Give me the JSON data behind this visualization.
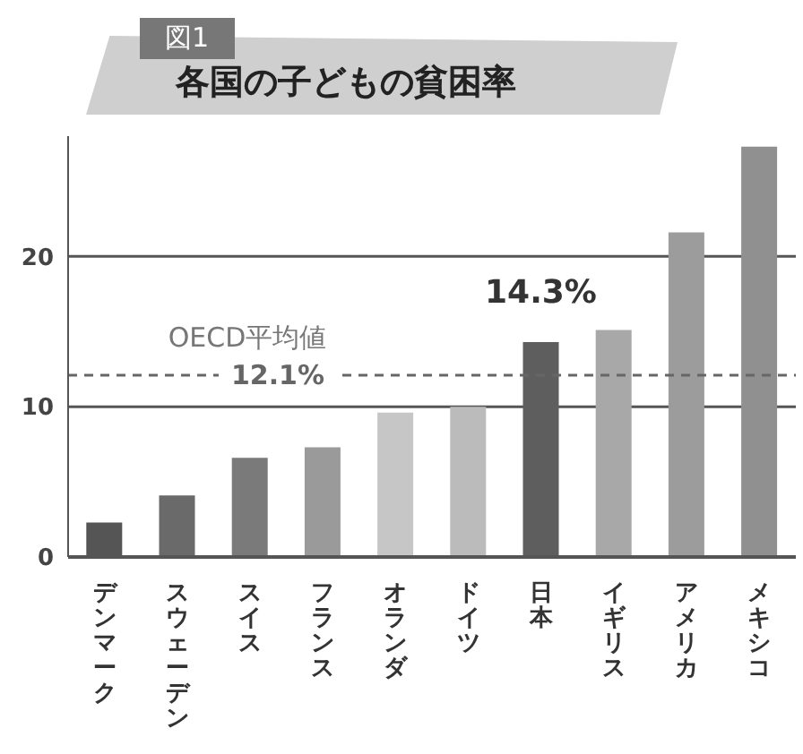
{
  "chart_data": {
    "type": "bar",
    "title": "各国の子どもの貧困率",
    "annotations": [
      "図1",
      "OECD平均値"
    ],
    "categories": [
      "デンマーク",
      "スウェーデン",
      "スイス",
      "フランス",
      "オランダ",
      "ドイツ",
      "日本",
      "イギリス",
      "アメリカ",
      "メキシコ"
    ],
    "values": [
      2.3,
      4.1,
      6.6,
      7.3,
      9.6,
      10.0,
      14.3,
      15.1,
      21.6,
      27.3
    ],
    "colors": [
      "#555555",
      "#6a6a6a",
      "#7a7a7a",
      "#9a9a9a",
      "#c6c6c6",
      "#bbbbbb",
      "#5e5e5e",
      "#a8a8a8",
      "#9c9c9c",
      "#909090"
    ],
    "value_labels": [
      null,
      null,
      null,
      null,
      null,
      null,
      "14.3%",
      null,
      null,
      null
    ],
    "ref_lines": [
      {
        "axis": "y",
        "value": 12.1,
        "label": "12.1%",
        "color": "#666666",
        "line_style": "dashed"
      }
    ],
    "ylim": [
      0,
      28
    ],
    "yticks": [
      0,
      10,
      20
    ],
    "grid": "y",
    "legend": false
  }
}
